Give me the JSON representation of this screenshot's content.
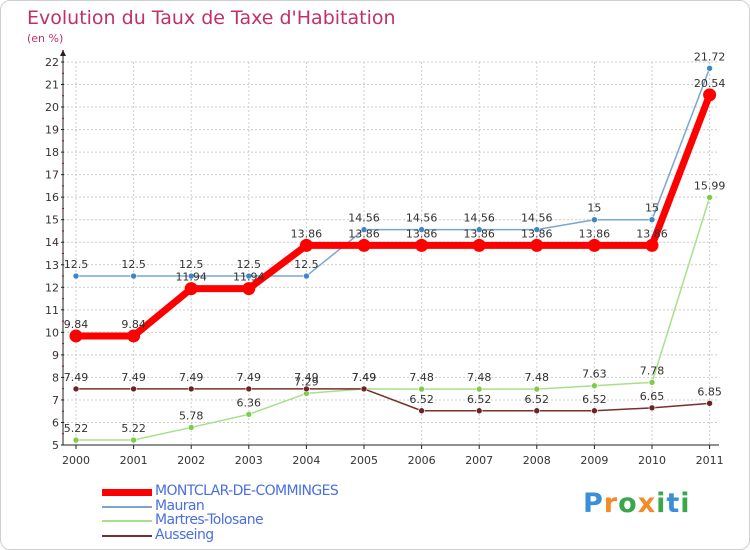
{
  "header": {
    "title": "Evolution du Taux de Taxe d'Habitation",
    "unit": "(en %)"
  },
  "colors": {
    "title": "#c0306a",
    "grid": "#cccccc",
    "axis": "#222222",
    "tick_red": "#e01010"
  },
  "chart_data": {
    "type": "line",
    "title": "Evolution du Taux de Taxe d'Habitation",
    "ylabel": "(en %)",
    "xlabel": "",
    "x": [
      "2000",
      "2001",
      "2002",
      "2003",
      "2004",
      "2005",
      "2006",
      "2007",
      "2008",
      "2009",
      "2010",
      "2011"
    ],
    "ylim": [
      5,
      22
    ],
    "yticks": [
      "5",
      "6",
      "7",
      "8",
      "9",
      "10",
      "11",
      "12",
      "13",
      "14",
      "15",
      "16",
      "17",
      "18",
      "19",
      "20",
      "21",
      "22"
    ],
    "grid": true,
    "legend_position": "bottom-left",
    "series": [
      {
        "name": "MONTCLAR-DE-COMMINGES",
        "color": "#ff0000",
        "marker": "#ff0000",
        "width": 7,
        "marker_r": 6.5,
        "values": [
          9.84,
          9.84,
          11.94,
          11.94,
          13.86,
          13.86,
          13.86,
          13.86,
          13.86,
          13.86,
          13.86,
          20.54
        ],
        "labels": [
          "9.84",
          "9.84",
          "11.94",
          "11.94",
          "13.86",
          "13.86",
          "13.86",
          "13.86",
          "13.86",
          "13.86",
          "13.86",
          "20.54"
        ]
      },
      {
        "name": "Mauran",
        "color": "#7aa7cf",
        "marker": "#3f86c8",
        "width": 1.5,
        "marker_r": 3,
        "values": [
          12.5,
          12.5,
          12.5,
          12.5,
          12.5,
          14.56,
          14.56,
          14.56,
          14.56,
          15,
          15,
          21.72
        ],
        "labels": [
          "12.5",
          "12.5",
          "12.5",
          "12.5",
          "12.5",
          "14.56",
          "14.56",
          "14.56",
          "14.56",
          "15",
          "15",
          "21.72"
        ]
      },
      {
        "name": "Martres-Tolosane",
        "color": "#a8e08a",
        "marker": "#7fcc4a",
        "width": 1.5,
        "marker_r": 3,
        "values": [
          5.22,
          5.22,
          5.78,
          6.36,
          7.29,
          7.49,
          7.48,
          7.48,
          7.48,
          7.63,
          7.78,
          15.99
        ],
        "labels": [
          "5.22",
          "5.22",
          "5.78",
          "6.36",
          "7.29",
          "7.49",
          "7.48",
          "7.48",
          "7.48",
          "7.63",
          "7.78",
          "15.99"
        ]
      },
      {
        "name": "Ausseing",
        "color": "#7a2e2e",
        "marker": "#6b2424",
        "width": 1.5,
        "marker_r": 3,
        "values": [
          7.49,
          7.49,
          7.49,
          7.49,
          7.49,
          7.49,
          6.52,
          6.52,
          6.52,
          6.52,
          6.65,
          6.85
        ],
        "labels": [
          "7.49",
          "7.49",
          "7.49",
          "7.49",
          "7.49",
          "7.49",
          "6.52",
          "6.52",
          "6.52",
          "6.52",
          "6.65",
          "6.85"
        ]
      }
    ]
  },
  "legend": {
    "items": [
      {
        "label": "MONTCLAR-DE-COMMINGES",
        "color": "#ff0000",
        "text_color": "#4a6fe0",
        "thickness": 7
      },
      {
        "label": "Mauran",
        "color": "#7aa7cf",
        "text_color": "#4a6fe0",
        "thickness": 2
      },
      {
        "label": "Martres-Tolosane",
        "color": "#a8e08a",
        "text_color": "#4a6fe0",
        "thickness": 2
      },
      {
        "label": "Ausseing",
        "color": "#7a2e2e",
        "text_color": "#4a6fe0",
        "thickness": 2
      }
    ]
  },
  "logo": {
    "text": "Proxiti",
    "letters": [
      "P",
      "r",
      "o",
      "x",
      "i",
      "t",
      "i"
    ],
    "letter_colors": [
      "#3a8fd8",
      "#f28c28",
      "#3aa84a",
      "#f28c28",
      "#3aa84a",
      "#3a8fd8",
      "#3aa84a"
    ]
  }
}
